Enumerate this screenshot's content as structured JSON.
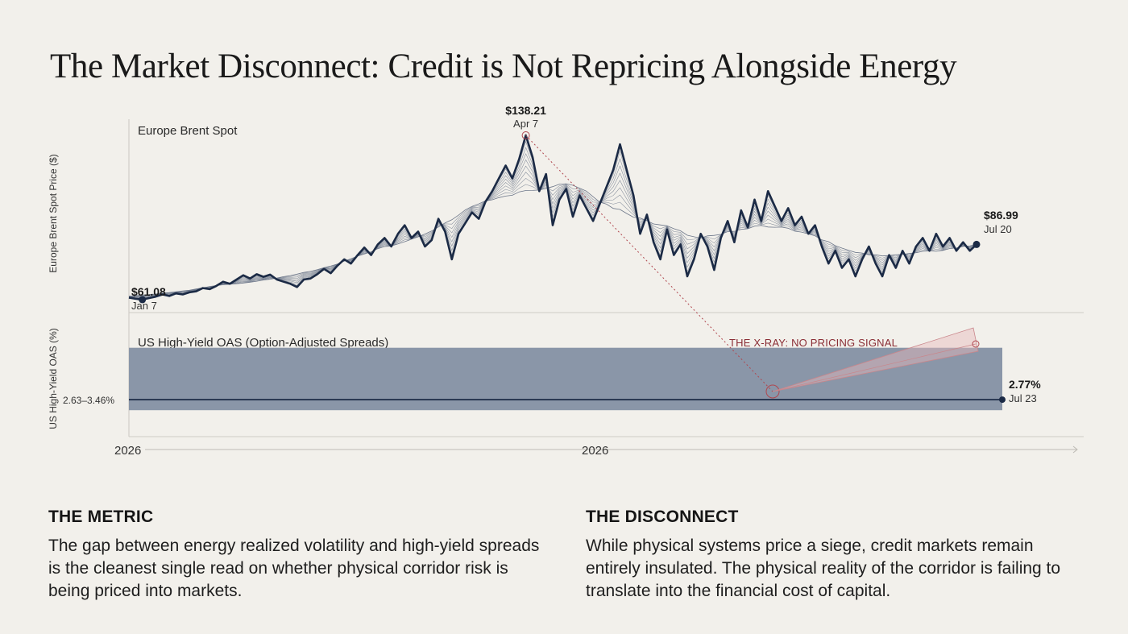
{
  "title": "The Market Disconnect: Credit is Not Repricing Alongside Energy",
  "chart_data": {
    "type": "line",
    "x_tick_labels": [
      "2026",
      "2026"
    ],
    "panels": [
      {
        "id": "brent",
        "title": "Europe Brent Spot",
        "ylabel": "Europe Brent Spot Price ($)",
        "ylim": [
          55,
          145
        ],
        "series": [
          {
            "values": [
              62.0,
              61.5,
              61.08,
              61.8,
              62.5,
              63.5,
              62.8,
              64.0,
              63.5,
              64.5,
              65.0,
              66.5,
              66.0,
              67.5,
              69.5,
              68.5,
              70.5,
              72.5,
              71.0,
              73.0,
              71.8,
              72.8,
              70.5,
              69.5,
              68.5,
              67.0,
              70.5,
              71.0,
              73.0,
              75.5,
              73.5,
              77.0,
              80.0,
              78.0,
              82.0,
              85.5,
              82.0,
              87.0,
              90.0,
              86.0,
              92.0,
              96.0,
              90.0,
              93.0,
              86.0,
              89.0,
              99.0,
              93.0,
              80.0,
              92.0,
              97.0,
              102.0,
              99.0,
              107.0,
              112.0,
              118.0,
              124.0,
              118.0,
              127.0,
              138.21,
              128.0,
              112.0,
              120.0,
              96.0,
              108.0,
              113.0,
              100.0,
              110.0,
              104.0,
              98.0,
              106.0,
              114.0,
              122.0,
              134.0,
              122.0,
              110.0,
              92.0,
              101.0,
              88.0,
              80.0,
              94.0,
              82.0,
              87.0,
              72.0,
              80.0,
              92.0,
              86.0,
              75.0,
              90.0,
              98.0,
              88.0,
              103.0,
              95.0,
              108.0,
              98.0,
              112.0,
              105.0,
              98.0,
              104.0,
              96.0,
              100.0,
              92.0,
              96.0,
              86.0,
              78.0,
              84.0,
              76.0,
              80.0,
              72.0,
              80.0,
              86.0,
              78.0,
              72.0,
              82.0,
              76.0,
              84.0,
              78.0,
              86.0,
              90.0,
              84.0,
              92.0,
              86.0,
              90.0,
              84.0,
              88.0,
              84.0,
              86.99
            ]
          }
        ],
        "annotations": [
          {
            "value": "$61.08",
            "date": "Jan 7"
          },
          {
            "value": "$138.21",
            "date": "Apr 7"
          },
          {
            "value": "$86.99",
            "date": "Jul 20"
          }
        ]
      },
      {
        "id": "hy_oas",
        "title": "US High-Yield OAS (Option-Adjusted Spreads)",
        "ylabel": "US High-Yield OAS (%)",
        "ylim": [
          2.3,
          3.8
        ],
        "band": {
          "low": 2.63,
          "high": 3.46,
          "label": "2.63–3.46%",
          "color": "#8a96a8"
        },
        "series": [
          {
            "values": [
              2.77,
              2.77,
              2.77,
              2.77,
              2.77
            ]
          }
        ],
        "annotations": [
          {
            "value": "2.77%",
            "date": "Jul 23"
          }
        ],
        "callout": "THE X-RAY: NO PRICING SIGNAL"
      }
    ],
    "colors": {
      "line": "#1b2a45",
      "band": "#8a96a8",
      "callout": "#8a2d35"
    }
  },
  "sections": {
    "metric": {
      "heading": "THE METRIC",
      "body": "The gap between energy realized volatility and high-yield spreads is the cleanest single read on whether physical corridor risk is being priced into markets."
    },
    "disconnect": {
      "heading": "THE DISCONNECT",
      "body": "While physical systems price a siege, credit markets remain entirely insulated. The physical reality of the corridor is failing to translate into the financial cost of capital."
    }
  }
}
